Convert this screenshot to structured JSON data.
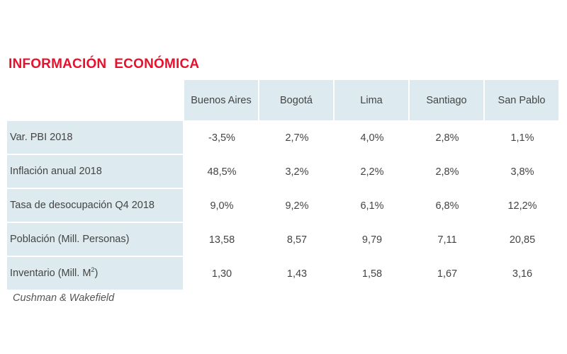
{
  "title": "INFORMACIÓN  ECONÓMICA",
  "table": {
    "columns": [
      "Buenos Aires",
      "Bogotá",
      "Lima",
      "Santiago",
      "San Pablo"
    ],
    "rows": [
      {
        "label": "Var. PBI 2018",
        "label_sup": "",
        "values": [
          "-3,5%",
          "2,7%",
          "4,0%",
          "2,8%",
          "1,1%"
        ]
      },
      {
        "label": "Inflación  anual 2018",
        "label_sup": "",
        "values": [
          "48,5%",
          "3,2%",
          "2,2%",
          "2,8%",
          "3,8%"
        ]
      },
      {
        "label": "Tasa de desocupación Q4 2018",
        "label_sup": "",
        "values": [
          "9,0%",
          "9,2%",
          "6,1%",
          "6,8%",
          "12,2%"
        ]
      },
      {
        "label": "Población (Mill. Personas)",
        "label_sup": "",
        "values": [
          "13,58",
          "8,57",
          "9,79",
          "7,11",
          "20,85"
        ]
      },
      {
        "label": "Inventario  (Mill. M",
        "label_sup": "2",
        "label_end": ")",
        "values": [
          "1,30",
          "1,43",
          "1,58",
          "1,67",
          "3,16"
        ]
      }
    ]
  },
  "source": "Cushman & Wakefield",
  "colors": {
    "title": "#e8112d",
    "header_fill": "#ddeaf0"
  }
}
